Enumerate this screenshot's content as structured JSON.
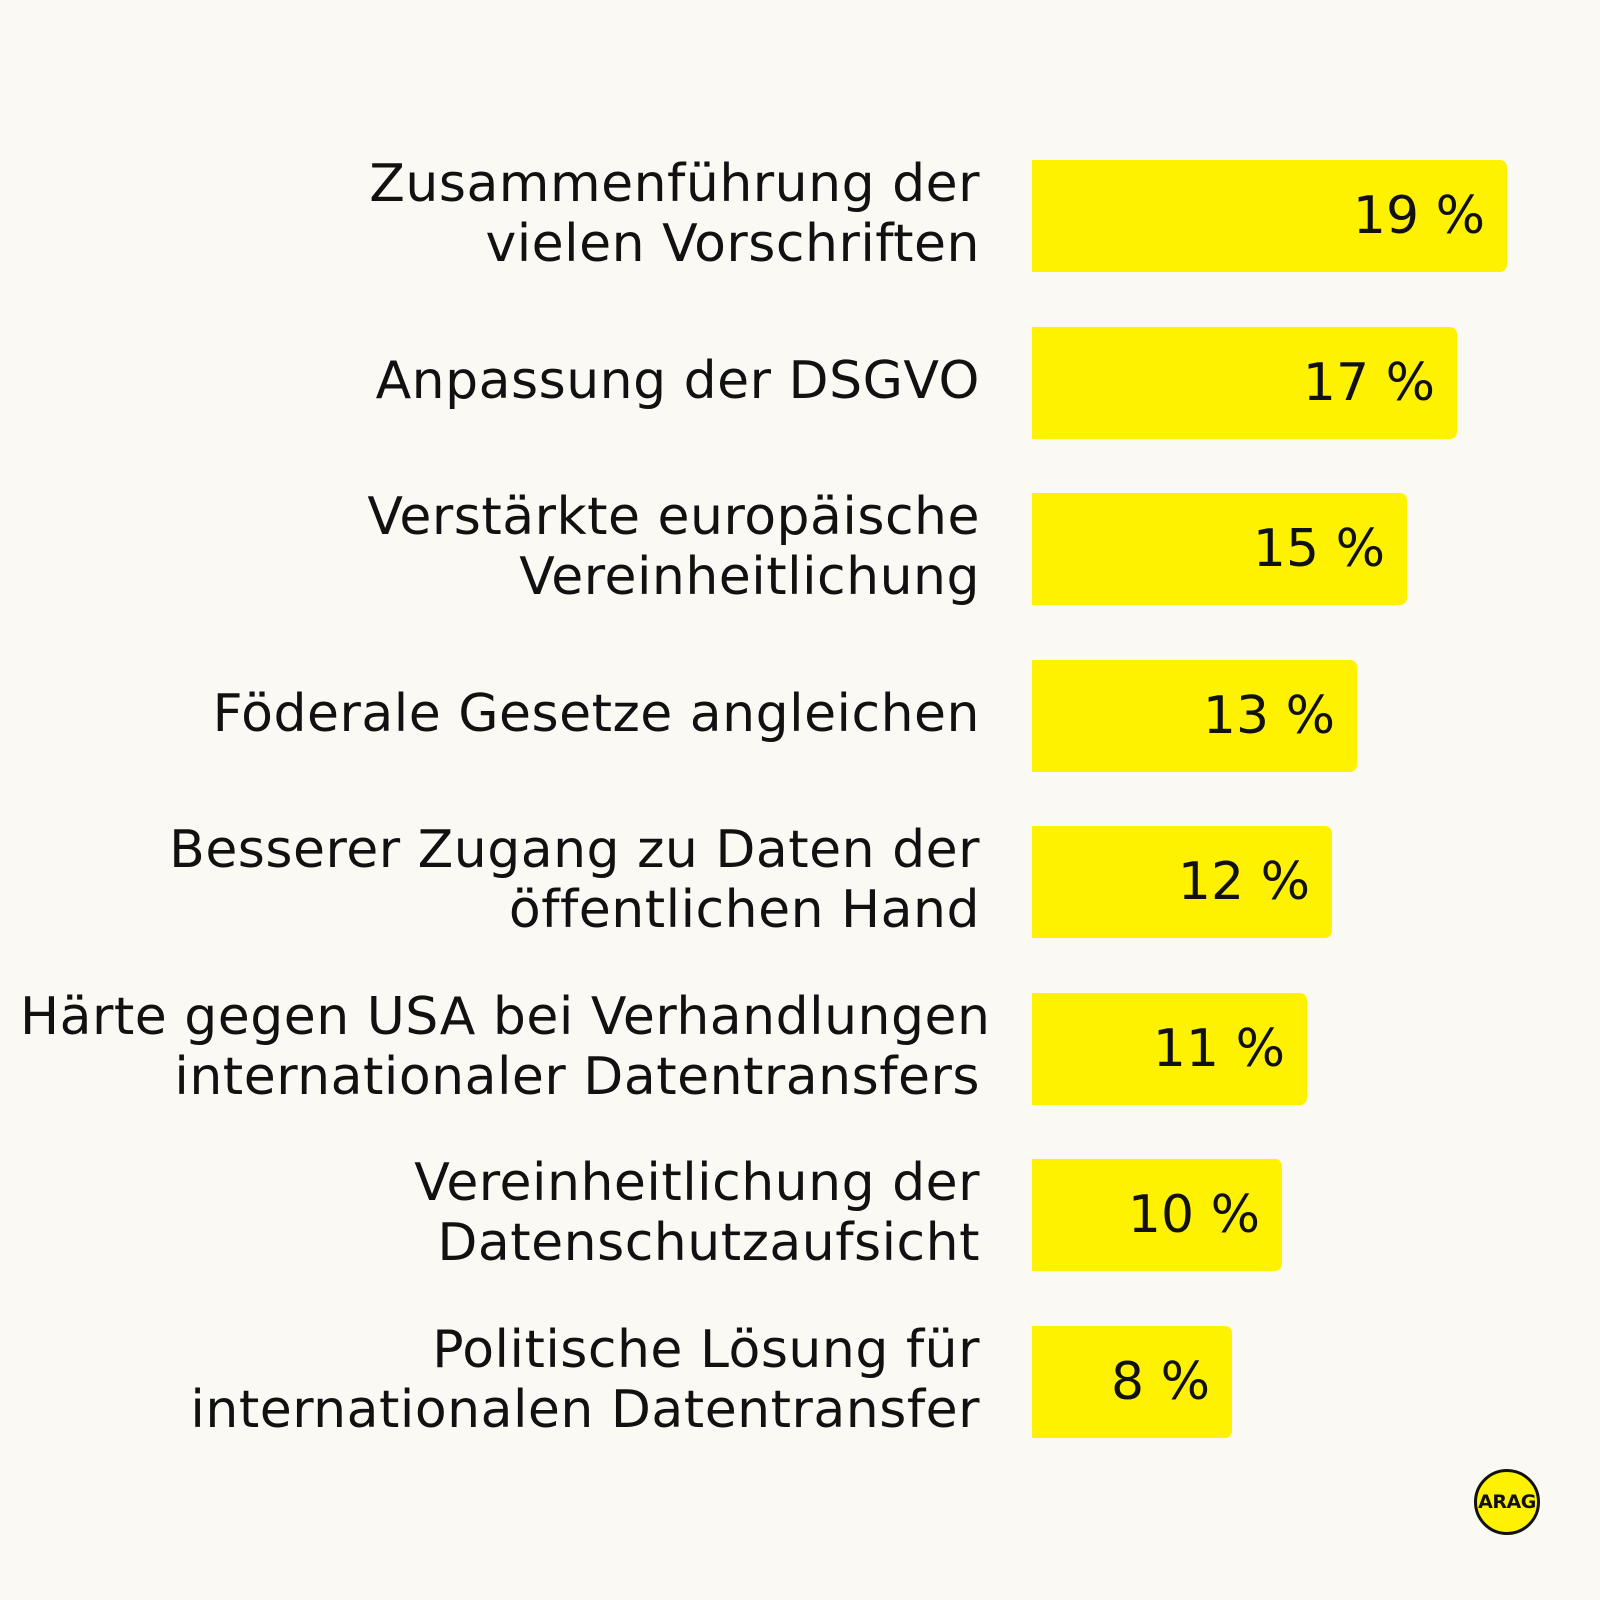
{
  "colors": {
    "background": "#fbf9f4",
    "bar": "#fff200",
    "text": "#111111",
    "logo_fill": "#fff200"
  },
  "chart_data": {
    "type": "bar",
    "orientation": "horizontal",
    "categories": [
      [
        "Zusammenführung der",
        "vielen Vorschriften"
      ],
      [
        "Anpassung der  DSGVO"
      ],
      [
        "Verstärkte europäische",
        "Vereinheitlichung"
      ],
      [
        "Föderale Gesetze angleichen"
      ],
      [
        "Besserer Zugang zu Daten der",
        "öffentlichen Hand"
      ],
      [
        "Härte gegen USA bei Verhandlungen",
        "internationaler Datentransfers"
      ],
      [
        "Vereinheitlichung der",
        "Datenschutzaufsicht"
      ],
      [
        "Politische Lösung für",
        "internationalen Datentransfer"
      ]
    ],
    "values": [
      19,
      17,
      15,
      13,
      12,
      11,
      10,
      8
    ],
    "value_labels": [
      "19 %",
      "17 %",
      "15 %",
      "13 %",
      "12 %",
      "11 %",
      "10 %",
      "8 %"
    ],
    "unit": "%",
    "grid": false,
    "legend": "none"
  },
  "logo": {
    "text": "ARAG"
  }
}
